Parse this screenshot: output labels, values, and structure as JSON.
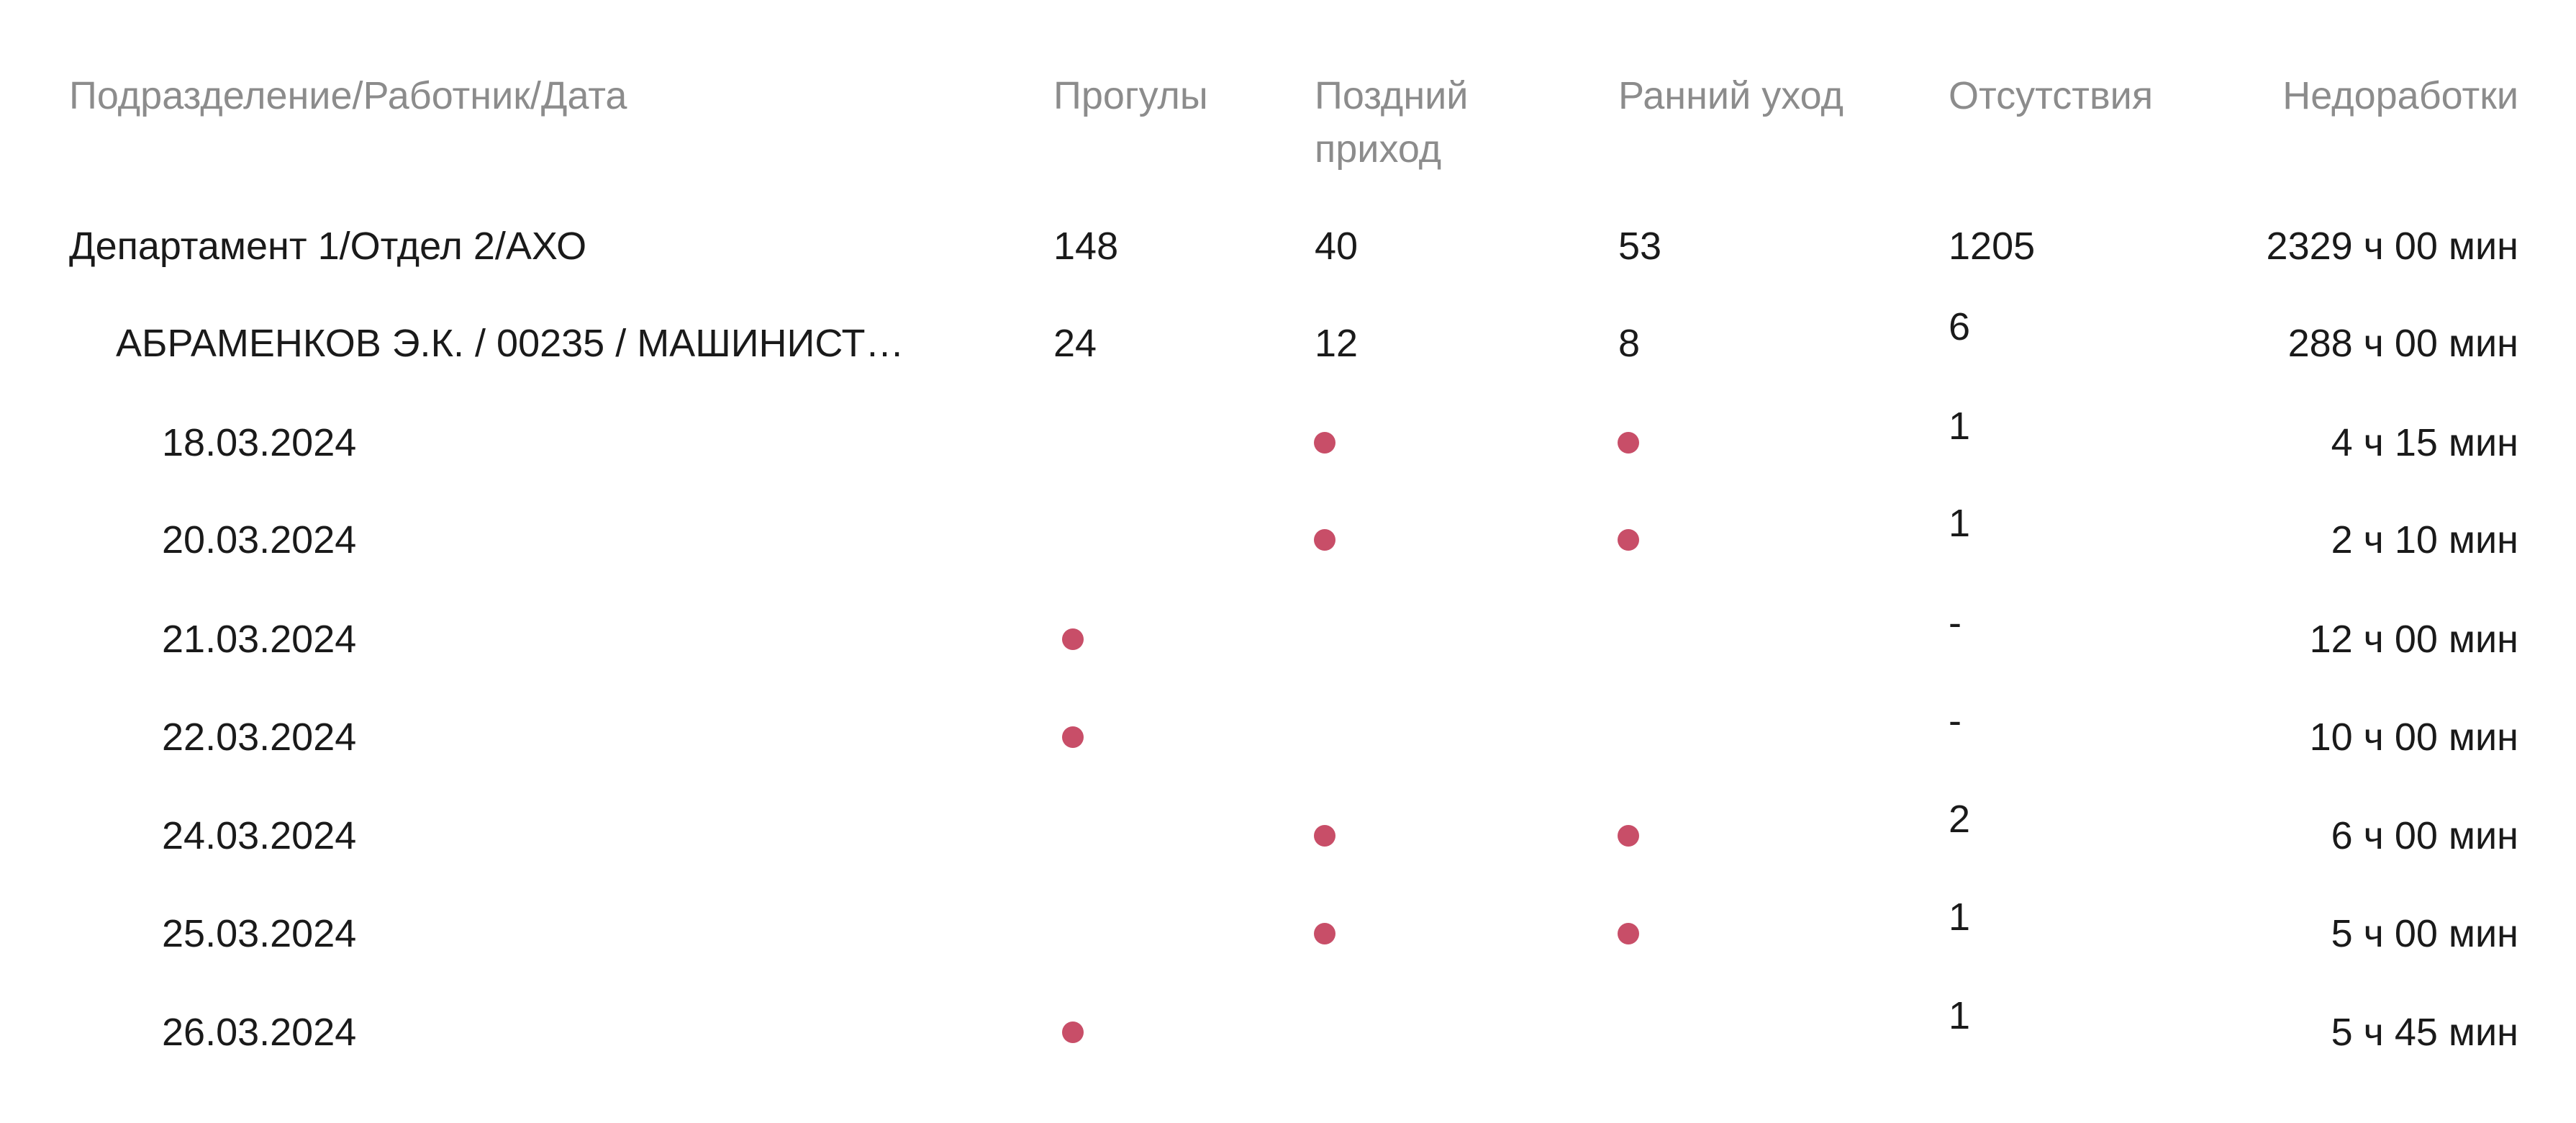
{
  "header": [
    "Подразделение/Работник/Дата",
    "Прогулы",
    "Поздний приход",
    "Ранний уход",
    "Отсутствия",
    "Недоработки"
  ],
  "department": {
    "name": "Департамент 1/Отдел 2/АХО",
    "cells": [
      148,
      40,
      53,
      1205,
      "2329 ч 00 мин"
    ]
  },
  "employee": {
    "name": "АБРАМЕНКОВ Э.К. / 00235 / МАШИНИСТ…",
    "cells": [
      24,
      12,
      8,
      6,
      "288 ч 00 мин"
    ]
  },
  "dates": [
    {
      "name": "18.03.2024",
      "cells": [
        null,
        true,
        true,
        1,
        "4 ч 15 мин"
      ]
    },
    {
      "name": "20.03.2024",
      "cells": [
        null,
        true,
        true,
        1,
        "2 ч 10 мин"
      ]
    },
    {
      "name": "21.03.2024",
      "cells": [
        true,
        null,
        null,
        "-",
        "12 ч 00 мин"
      ]
    },
    {
      "name": "22.03.2024",
      "cells": [
        true,
        null,
        null,
        "-",
        "10 ч 00 мин"
      ]
    },
    {
      "name": "24.03.2024",
      "cells": [
        null,
        true,
        true,
        2,
        "6 ч 00 мин"
      ]
    },
    {
      "name": "25.03.2024",
      "cells": [
        null,
        true,
        true,
        1,
        "5 ч 00 мин"
      ]
    },
    {
      "name": "26.03.2024",
      "cells": [
        true,
        null,
        null,
        1,
        "5 ч 45 мин"
      ]
    }
  ]
}
